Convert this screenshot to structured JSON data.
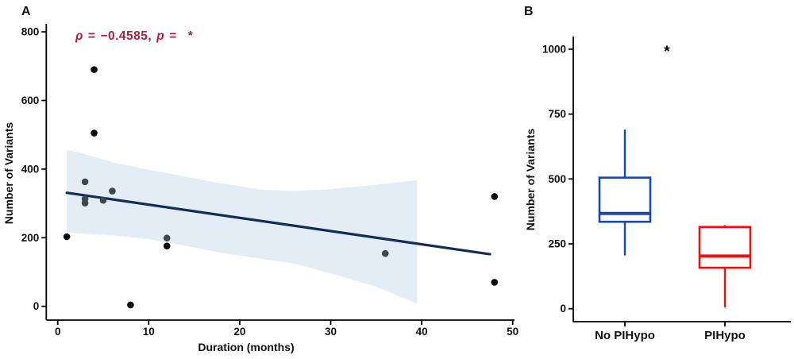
{
  "panels": {
    "a": {
      "label": "A",
      "annotation": {
        "rho": "ρ",
        "eq1": "=",
        "value": "−0.4585,",
        "p": "p",
        "eq2": "=",
        "star": "*",
        "color": "#b41f3d"
      }
    },
    "b": {
      "label": "B"
    }
  },
  "chart_data": [
    {
      "id": "panel_a",
      "type": "scatter",
      "xlabel": "Duration (months)",
      "ylabel": "Number of Variants",
      "xlim": [
        0,
        50
      ],
      "ylim": [
        0,
        800
      ],
      "xticks": [
        0,
        10,
        20,
        30,
        40,
        50
      ],
      "yticks": [
        0,
        200,
        400,
        600,
        800
      ],
      "grid": false,
      "point_colors": {
        "black": "#0b0b0b",
        "gray": "#40464d"
      },
      "points": [
        {
          "x": 4,
          "y": 690,
          "shade": "black"
        },
        {
          "x": 4,
          "y": 505,
          "shade": "black"
        },
        {
          "x": 3,
          "y": 363,
          "shade": "gray"
        },
        {
          "x": 6,
          "y": 336,
          "shade": "gray"
        },
        {
          "x": 3,
          "y": 313,
          "shade": "gray"
        },
        {
          "x": 3,
          "y": 301,
          "shade": "gray"
        },
        {
          "x": 5,
          "y": 309,
          "shade": "gray"
        },
        {
          "x": 1,
          "y": 203,
          "shade": "black"
        },
        {
          "x": 12,
          "y": 199,
          "shade": "gray"
        },
        {
          "x": 12,
          "y": 176,
          "shade": "black"
        },
        {
          "x": 8,
          "y": 4,
          "shade": "black"
        },
        {
          "x": 36,
          "y": 154,
          "shade": "gray"
        },
        {
          "x": 48,
          "y": 320,
          "shade": "black"
        },
        {
          "x": 48,
          "y": 70,
          "shade": "black"
        }
      ],
      "regression_line": {
        "x1": 1,
        "y1": 331,
        "x2": 47.5,
        "y2": 152,
        "color": "#122c5a"
      },
      "confidence_band": {
        "color": "#e3edf5",
        "upper": [
          [
            1,
            456
          ],
          [
            2.4,
            448
          ],
          [
            6,
            420
          ],
          [
            10,
            398
          ],
          [
            13.7,
            380
          ],
          [
            18,
            358
          ],
          [
            22.5,
            340
          ],
          [
            26,
            336
          ],
          [
            30,
            342
          ],
          [
            34,
            352
          ],
          [
            37,
            360
          ],
          [
            39.5,
            368
          ]
        ],
        "lower": [
          [
            1,
            215
          ],
          [
            6,
            207
          ],
          [
            10,
            196
          ],
          [
            13.7,
            178
          ],
          [
            18,
            156
          ],
          [
            22.5,
            138
          ],
          [
            26,
            125
          ],
          [
            30,
            96
          ],
          [
            34.7,
            60
          ],
          [
            37,
            35
          ],
          [
            39.5,
            8
          ]
        ]
      },
      "annotation_text": "ρ = −0.4585, p =  *"
    },
    {
      "id": "panel_b",
      "type": "boxplot",
      "categories": [
        "No PIHypo",
        "PIHypo"
      ],
      "ylabel": "Number of Variants",
      "ylim": [
        0,
        1000
      ],
      "yticks": [
        0,
        250,
        500,
        750,
        1000
      ],
      "grid": false,
      "boxes": [
        {
          "label": "No PIHypo",
          "color": "#1847b4",
          "min": 205,
          "q1": 335,
          "median": 367,
          "q3": 505,
          "max": 690
        },
        {
          "label": "PIHypo",
          "color": "#f30d0d",
          "min": 5,
          "q1": 158,
          "median": 203,
          "q3": 315,
          "max": 322
        }
      ],
      "significance": {
        "symbol": "*",
        "y": 990,
        "color": "#000000"
      }
    }
  ]
}
